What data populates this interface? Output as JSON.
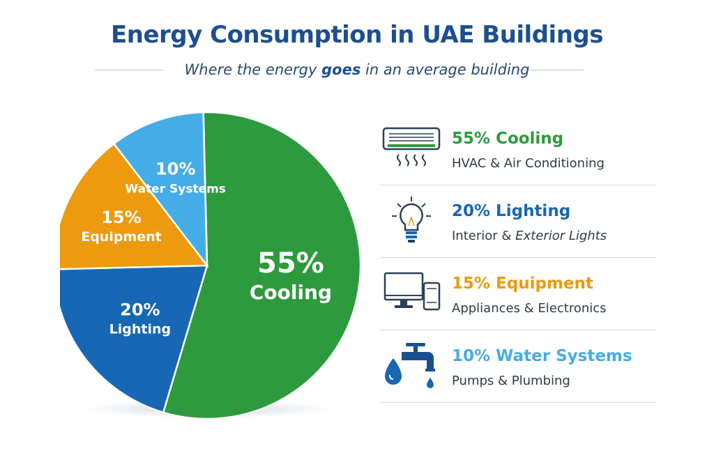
{
  "title": "Energy Consumption in UAE Buildings",
  "subtitle": {
    "before": "Where the energy",
    "emphasis": "goes",
    "after": "in an average building"
  },
  "colors": {
    "cooling": "#2e9a3e",
    "lighting": "#1767b4",
    "equipment": "#ed9a0e",
    "water": "#45ade6"
  },
  "chart_data": {
    "type": "pie",
    "title": "Energy Consumption in UAE Buildings",
    "subtitle": "Where the energy goes in an average building",
    "categories": [
      "Cooling",
      "Lighting",
      "Equipment",
      "Water Systems"
    ],
    "values": [
      55,
      20,
      15,
      10
    ],
    "slice_labels": [
      {
        "pct": "55%",
        "name": "Cooling"
      },
      {
        "pct": "20%",
        "name": "Lighting"
      },
      {
        "pct": "15%",
        "name": "Equipment"
      },
      {
        "pct": "10%",
        "name": "Water Systems"
      }
    ],
    "legend_position": "right"
  },
  "legend": [
    {
      "key": "cooling",
      "icon": "air-conditioner-icon",
      "title": "55% Cooling",
      "desc": "HVAC & Air Conditioning"
    },
    {
      "key": "lighting",
      "icon": "light-bulb-icon",
      "title": "20% Lighting",
      "desc_plain": "Interior & ",
      "desc_italic": "Exterior Lights"
    },
    {
      "key": "equipment",
      "icon": "computer-monitor-icon",
      "title": "15% Equipment",
      "desc": "Appliances & Electronics"
    },
    {
      "key": "water",
      "icon": "water-faucet-icon",
      "title": "10% Water Systems",
      "desc": "Pumps & Plumbing"
    }
  ]
}
